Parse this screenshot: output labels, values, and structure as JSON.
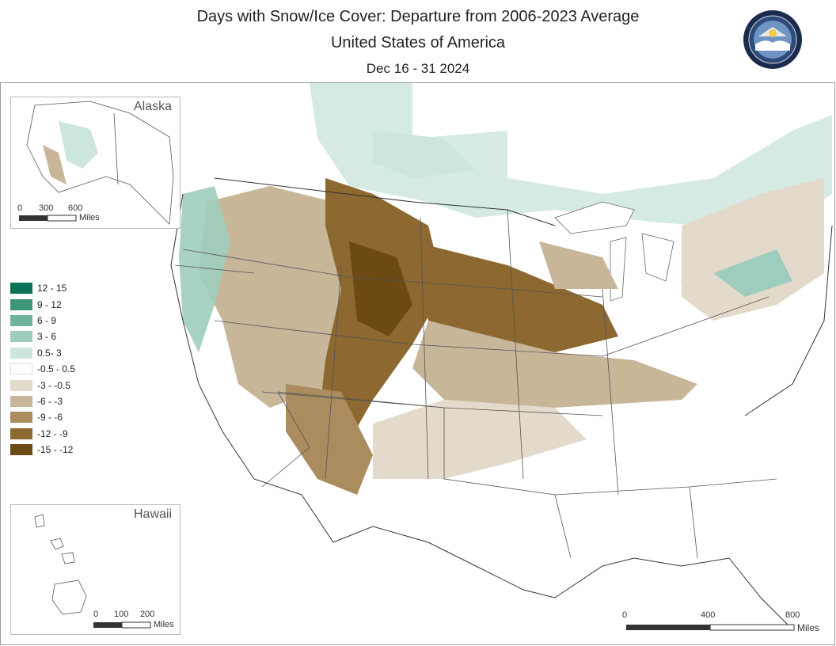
{
  "title": {
    "line1": "Days with Snow/Ice Cover: Departure from 2006-2023 Average",
    "line2": "United States of America",
    "line3": "Dec 16 - 31 2024"
  },
  "insets": {
    "alaska": {
      "label": "Alaska",
      "scale_ticks": [
        "0",
        "300",
        "600"
      ],
      "scale_unit": "Miles"
    },
    "hawaii": {
      "label": "Hawaii",
      "scale_ticks": [
        "0",
        "100",
        "200"
      ],
      "scale_unit": "Miles"
    }
  },
  "main_scale": {
    "ticks": [
      "0",
      "400",
      "800"
    ],
    "unit": "Miles"
  },
  "legend": [
    {
      "label": "12 - 15",
      "color": "#0b7157"
    },
    {
      "label": "9 - 12",
      "color": "#3f9577"
    },
    {
      "label": "6 - 9",
      "color": "#6fb39c"
    },
    {
      "label": "3 - 6",
      "color": "#9ecdbd"
    },
    {
      "label": "0.5- 3",
      "color": "#cde6dd"
    },
    {
      "label": "-0.5 - 0.5",
      "color": "#ffffff"
    },
    {
      "label": "-3 - -0.5",
      "color": "#e3dacb"
    },
    {
      "label": "-6 - -3",
      "color": "#c8b699"
    },
    {
      "label": "-9 - -6",
      "color": "#aa8c5e"
    },
    {
      "label": "-12 - -9",
      "color": "#8d6830"
    },
    {
      "label": "-15 - -12",
      "color": "#6b4a14"
    }
  ]
}
